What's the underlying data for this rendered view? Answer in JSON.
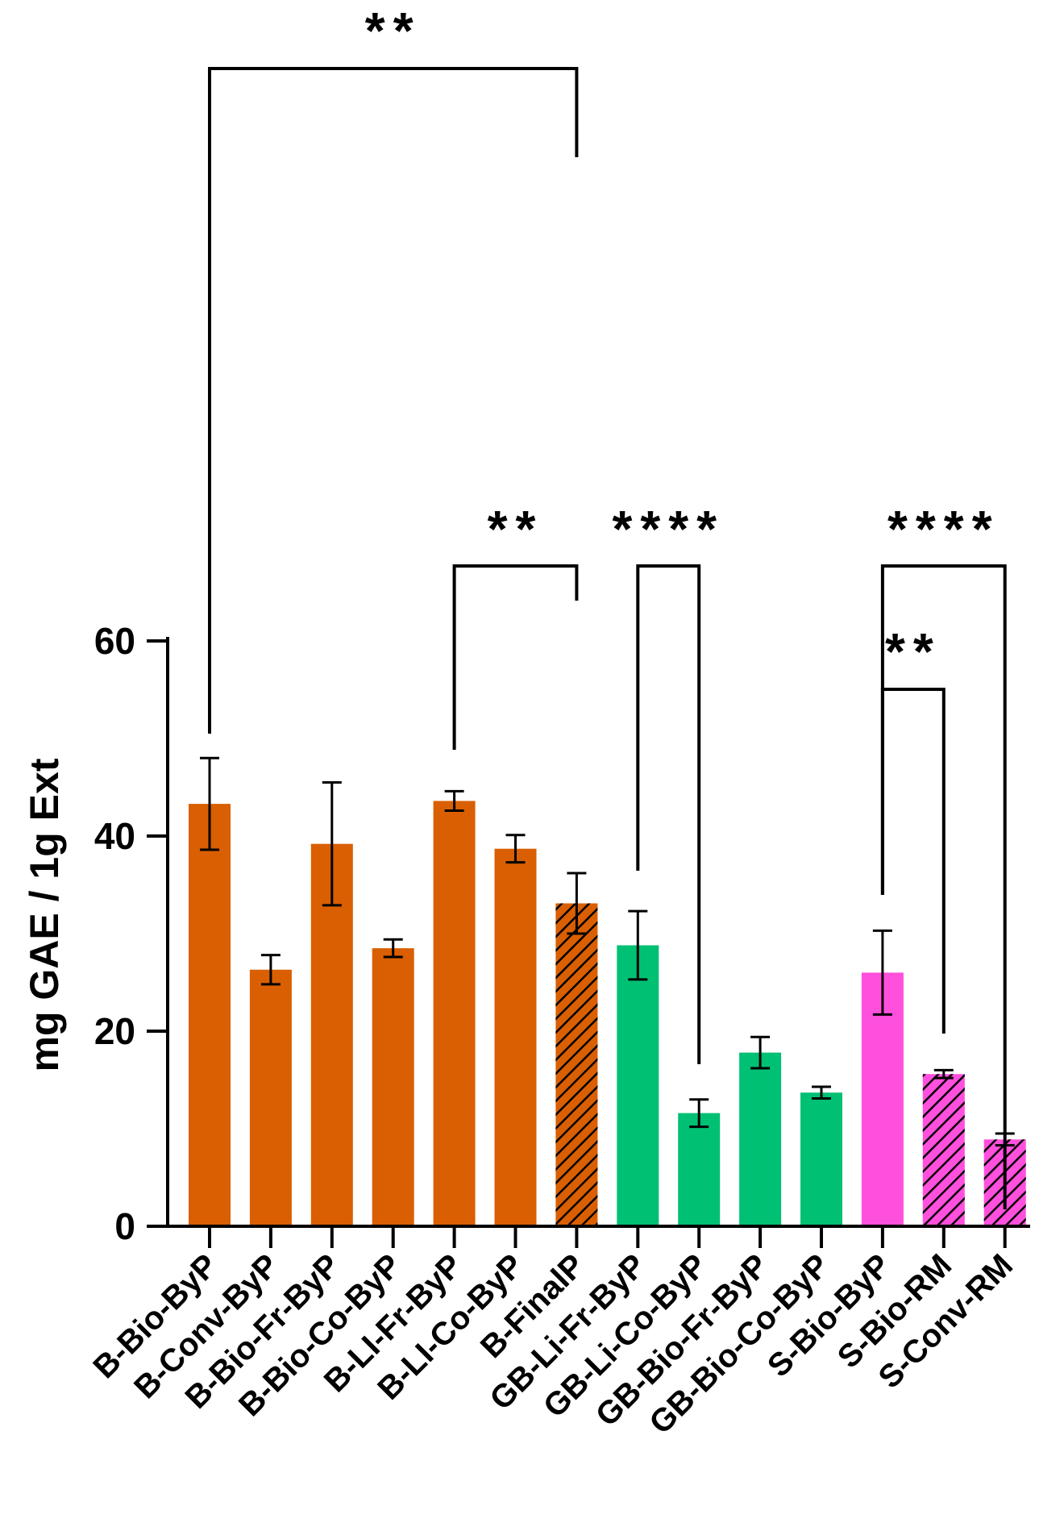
{
  "chart_data": {
    "type": "bar",
    "title": "",
    "xlabel": "",
    "ylabel": "mg GAE / 1g Ext",
    "ylim": [
      0,
      60
    ],
    "yticks": [
      0,
      20,
      40,
      60
    ],
    "ytick_labels": [
      "0",
      "20",
      "40",
      "60"
    ],
    "grid": false,
    "categories": [
      "B-Bio-ByP",
      "B-Conv-ByP",
      "B-Bio-Fr-ByP",
      "B-Bio-Co-ByP",
      "B-LI-Fr-ByP",
      "B-LI-Co-ByP",
      "B-FinalP",
      "GB-Li-Fr-ByP",
      "GB-Li-Co-ByP",
      "GB-Bio-Fr-ByP",
      "GB-Bio-Co-ByP",
      "S-Bio-ByP",
      "S-Bio-RM",
      "S-Conv-RM"
    ],
    "values": [
      43.3,
      26.3,
      39.2,
      28.5,
      43.6,
      38.7,
      33.1,
      28.8,
      11.6,
      17.8,
      13.7,
      26.0,
      15.6,
      8.9
    ],
    "errors": [
      4.7,
      1.5,
      6.3,
      0.9,
      1.0,
      1.4,
      3.1,
      3.5,
      1.4,
      1.6,
      0.6,
      4.3,
      0.4,
      0.6
    ],
    "colors": [
      "#d95f02",
      "#d95f02",
      "#d95f02",
      "#d95f02",
      "#d95f02",
      "#d95f02",
      "#d95f02",
      "#00c073",
      "#00c073",
      "#00c073",
      "#00c073",
      "#ff4fdd",
      "#ff4fdd",
      "#ff4fdd"
    ],
    "hatched": [
      false,
      false,
      false,
      false,
      false,
      false,
      true,
      false,
      false,
      false,
      false,
      false,
      true,
      true
    ],
    "significance": [
      {
        "from": 0,
        "to": 6,
        "label": "**"
      },
      {
        "from": 4,
        "to": 6,
        "label": "**"
      },
      {
        "from": 7,
        "to": 8,
        "label": "****"
      },
      {
        "from": 11,
        "to": 13,
        "label": "****"
      },
      {
        "from": 11,
        "to": 12,
        "label": "**"
      }
    ]
  }
}
